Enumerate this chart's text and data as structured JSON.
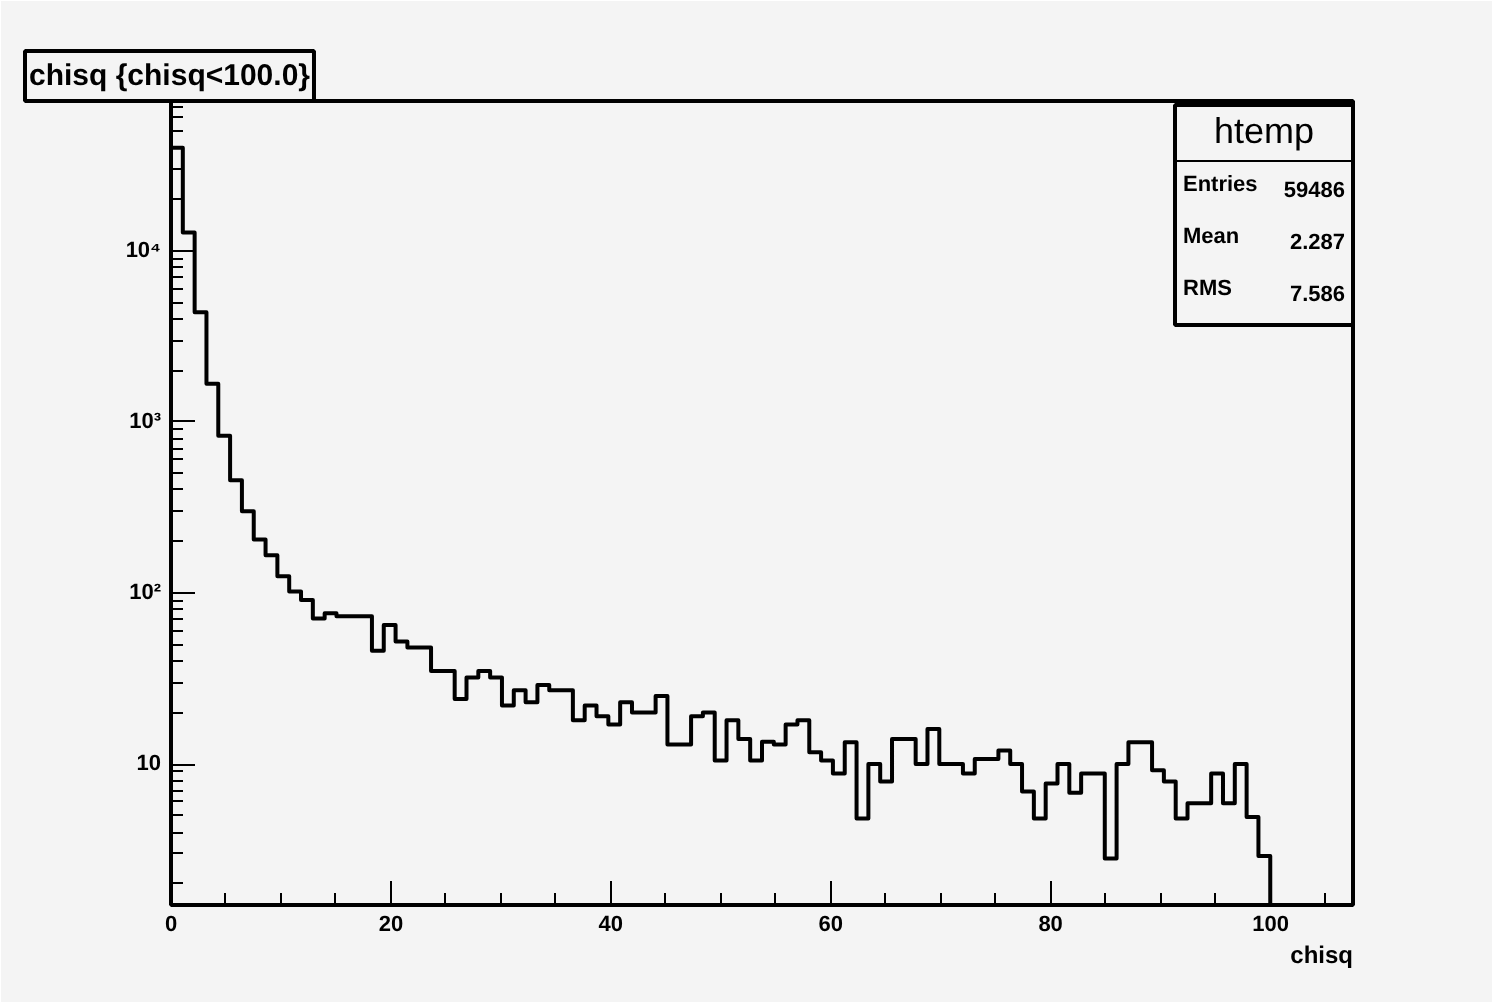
{
  "chart_data": {
    "type": "histogram",
    "title": "chisq {chisq<100.0}",
    "xlabel": "chisq",
    "annotations": [
      "htemp",
      "Entries",
      "59486",
      "Mean",
      "2.287",
      "RMS",
      "7.586"
    ],
    "bins": [
      0,
      1.075,
      2.15,
      3.225,
      4.3,
      5.375,
      6.45,
      7.525,
      8.6,
      9.675,
      10.75,
      11.825,
      12.9,
      13.975,
      15.05,
      16.125,
      17.2,
      18.275,
      19.35,
      20.425,
      21.5,
      22.575,
      23.65,
      24.725,
      25.8,
      26.875,
      27.95,
      29.025,
      30.1,
      31.175,
      32.25,
      33.325,
      34.4,
      35.475,
      36.55,
      37.625,
      38.7,
      39.775,
      40.85,
      41.925,
      43,
      44.075,
      45.15,
      46.225,
      47.3,
      48.375,
      49.45,
      50.525,
      51.6,
      52.675,
      53.75,
      54.825,
      55.9,
      56.975,
      58.05,
      59.125,
      60.2,
      61.275,
      62.35,
      63.425,
      64.5,
      65.575,
      66.65,
      67.725,
      68.8,
      69.875,
      70.95,
      72.025,
      73.1,
      74.175,
      75.25,
      76.325,
      77.4,
      78.475,
      79.55,
      80.625,
      81.7,
      82.775,
      83.85,
      84.925,
      86,
      87.075,
      88.15,
      89.225,
      90.3,
      91.375,
      92.45,
      93.525,
      94.6,
      95.675,
      96.75,
      97.825,
      98.9,
      99.975
    ],
    "values": [
      40000,
      12800,
      4370,
      1670,
      830,
      455,
      300,
      205,
      166,
      125,
      102,
      91,
      71,
      76,
      73,
      73,
      73,
      46,
      65,
      52,
      48,
      48,
      35,
      35,
      24,
      32,
      35,
      32,
      22,
      27,
      23,
      29,
      27,
      27,
      18,
      22,
      19,
      17,
      23,
      20,
      20,
      25,
      13,
      13,
      19,
      20,
      10.5,
      18,
      14,
      10.5,
      13.5,
      13,
      17,
      18,
      11.7,
      10.5,
      8.8,
      13.4,
      4.8,
      10,
      7.9,
      14,
      14,
      10,
      16,
      10,
      10,
      8.8,
      10.7,
      10.7,
      12,
      10,
      6.9,
      4.8,
      7.7,
      10,
      6.8,
      8.8,
      8.8,
      2.8,
      10,
      13.4,
      13.4,
      9.2,
      7.9,
      4.8,
      5.9,
      5.9,
      8.8,
      5.9,
      10,
      4.9,
      2.9
    ],
    "color": "#000000",
    "log": "y",
    "xlim": [
      0,
      107.5
    ],
    "ylim": [
      1.5,
      75000
    ],
    "xticks": [
      0,
      20,
      40,
      60,
      80,
      100
    ],
    "yticks": [
      {
        "value": 10,
        "label": "10"
      },
      {
        "value": 100,
        "label": "10²"
      },
      {
        "value": 1000,
        "label": "10³"
      },
      {
        "value": 10000,
        "label": "10⁴"
      }
    ],
    "grid": false
  }
}
